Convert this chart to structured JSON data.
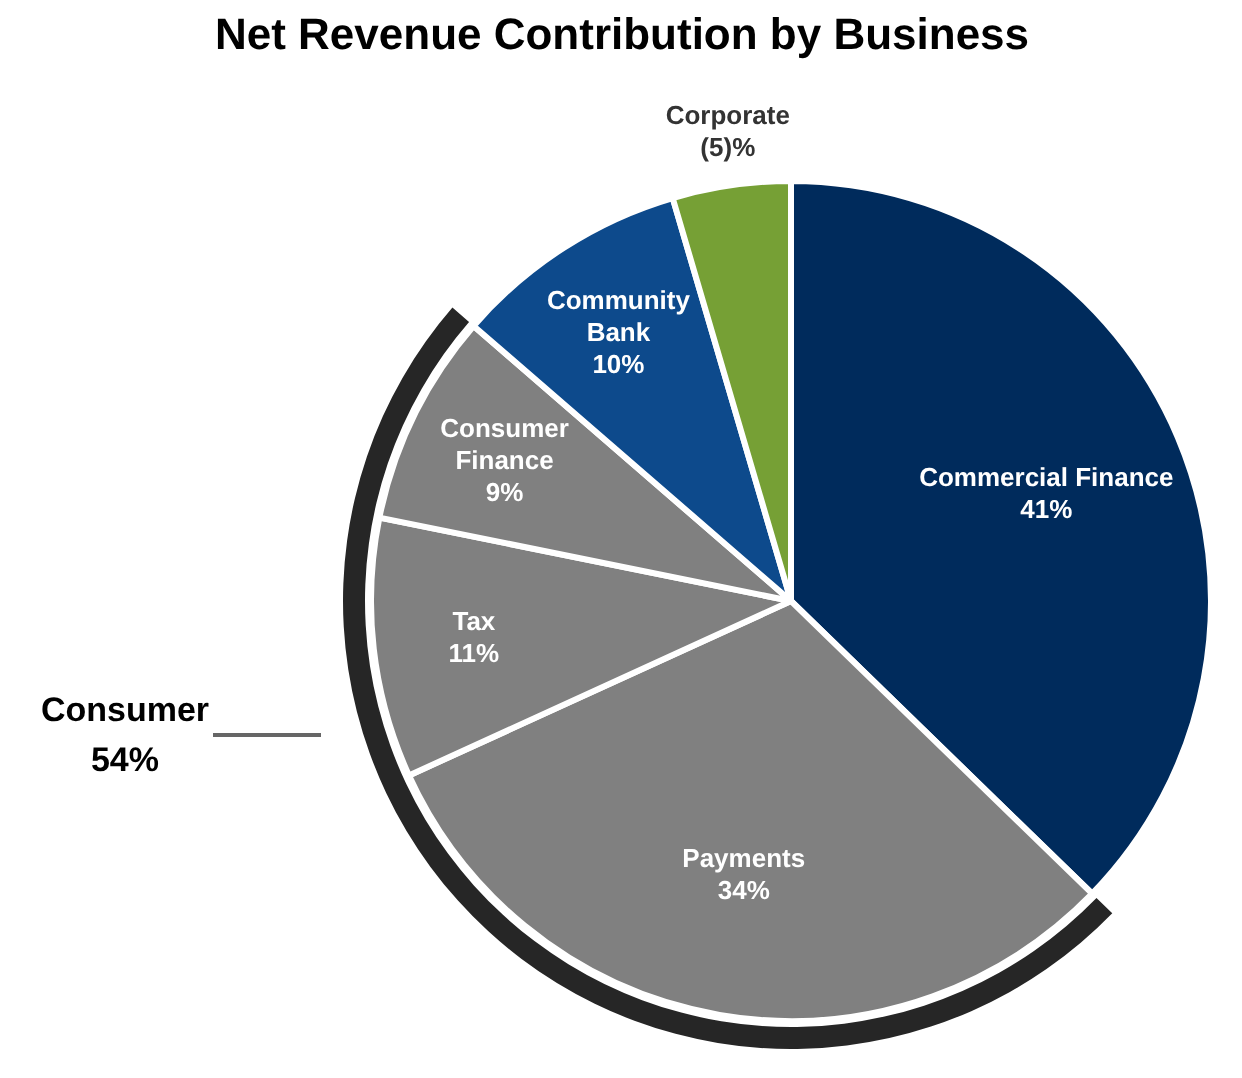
{
  "chart_data": {
    "type": "pie",
    "title": "Net Revenue Contribution by Business",
    "categories": [
      "Commercial Finance",
      "Payments",
      "Tax",
      "Consumer Finance",
      "Community Bank",
      "Corporate"
    ],
    "values": [
      41,
      34,
      11,
      9,
      10,
      5
    ],
    "value_labels": [
      "41%",
      "34%",
      "11%",
      "9%",
      "10%",
      "(5)%"
    ],
    "colors": [
      "#002b5c",
      "#808080",
      "#808080",
      "#808080",
      "#0d4a8c",
      "#76a035"
    ],
    "annotations": [
      "Consumer\n54%"
    ]
  }
}
